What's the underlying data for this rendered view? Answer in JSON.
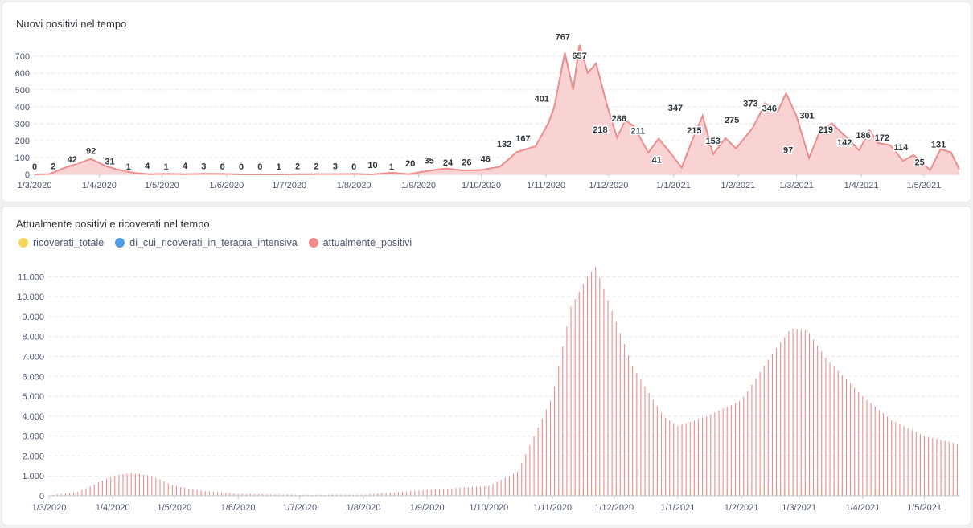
{
  "colors": {
    "red": "#ef8c8c",
    "red_fill": "#f9d3d3",
    "yellow": "#f9d45c",
    "blue": "#509ee3",
    "grid": "#e6e8eb",
    "axis": "#c4c8ce"
  },
  "chart_data": [
    {
      "type": "area",
      "title": "Nuovi positivi nel tempo",
      "xlabel": "",
      "ylabel": "",
      "x_ticks": [
        "1/3/2020",
        "1/4/2020",
        "1/5/2020",
        "1/6/2020",
        "1/7/2020",
        "1/8/2020",
        "1/9/2020",
        "1/10/2020",
        "1/11/2020",
        "1/12/2020",
        "1/1/2021",
        "1/2/2021",
        "1/3/2021",
        "1/4/2021",
        "1/5/2021"
      ],
      "y_ticks": [
        "0",
        "100",
        "200",
        "300",
        "400",
        "500",
        "600",
        "700"
      ],
      "ylim": [
        0,
        780
      ],
      "grid": true,
      "series": [
        {
          "color": "#ef8c8c"
        }
      ],
      "points": [
        {
          "x": "2020-03-01",
          "y": 0
        },
        {
          "x": "2020-03-08",
          "y": 2
        },
        {
          "x": "2020-03-16",
          "y": 42
        },
        {
          "x": "2020-03-23",
          "y": 70
        },
        {
          "x": "2020-03-28",
          "y": 92
        },
        {
          "x": "2020-04-04",
          "y": 50
        },
        {
          "x": "2020-04-09",
          "y": 31
        },
        {
          "x": "2020-04-18",
          "y": 8
        },
        {
          "x": "2020-04-25",
          "y": 1
        },
        {
          "x": "2020-05-03",
          "y": 4
        },
        {
          "x": "2020-05-12",
          "y": 1
        },
        {
          "x": "2020-05-21",
          "y": 4
        },
        {
          "x": "2020-05-30",
          "y": 3
        },
        {
          "x": "2020-06-09",
          "y": 0
        },
        {
          "x": "2020-06-18",
          "y": 0
        },
        {
          "x": "2020-06-27",
          "y": 0
        },
        {
          "x": "2020-07-06",
          "y": 1
        },
        {
          "x": "2020-07-15",
          "y": 2
        },
        {
          "x": "2020-07-24",
          "y": 2
        },
        {
          "x": "2020-08-01",
          "y": 3
        },
        {
          "x": "2020-08-10",
          "y": 0
        },
        {
          "x": "2020-08-19",
          "y": 10
        },
        {
          "x": "2020-08-27",
          "y": 1
        },
        {
          "x": "2020-09-05",
          "y": 20
        },
        {
          "x": "2020-09-14",
          "y": 35
        },
        {
          "x": "2020-09-22",
          "y": 24
        },
        {
          "x": "2020-10-01",
          "y": 26
        },
        {
          "x": "2020-10-10",
          "y": 46
        },
        {
          "x": "2020-10-18",
          "y": 132
        },
        {
          "x": "2020-10-27",
          "y": 167
        },
        {
          "x": "2020-11-02",
          "y": 300
        },
        {
          "x": "2020-11-05",
          "y": 401
        },
        {
          "x": "2020-11-10",
          "y": 720
        },
        {
          "x": "2020-11-14",
          "y": 500
        },
        {
          "x": "2020-11-17",
          "y": 767
        },
        {
          "x": "2020-11-21",
          "y": 600
        },
        {
          "x": "2020-11-25",
          "y": 657
        },
        {
          "x": "2020-11-30",
          "y": 420
        },
        {
          "x": "2020-12-05",
          "y": 218
        },
        {
          "x": "2020-12-09",
          "y": 320
        },
        {
          "x": "2020-12-13",
          "y": 286
        },
        {
          "x": "2020-12-20",
          "y": 130
        },
        {
          "x": "2020-12-25",
          "y": 211
        },
        {
          "x": "2020-12-31",
          "y": 120
        },
        {
          "x": "2021-01-05",
          "y": 41
        },
        {
          "x": "2021-01-10",
          "y": 200
        },
        {
          "x": "2021-01-15",
          "y": 347
        },
        {
          "x": "2021-01-20",
          "y": 120
        },
        {
          "x": "2021-01-26",
          "y": 215
        },
        {
          "x": "2021-01-31",
          "y": 153
        },
        {
          "x": "2021-02-08",
          "y": 275
        },
        {
          "x": "2021-02-14",
          "y": 420
        },
        {
          "x": "2021-02-20",
          "y": 373
        },
        {
          "x": "2021-02-24",
          "y": 480
        },
        {
          "x": "2021-03-01",
          "y": 346
        },
        {
          "x": "2021-03-07",
          "y": 97
        },
        {
          "x": "2021-03-12",
          "y": 250
        },
        {
          "x": "2021-03-18",
          "y": 301
        },
        {
          "x": "2021-03-25",
          "y": 219
        },
        {
          "x": "2021-03-31",
          "y": 142
        },
        {
          "x": "2021-04-05",
          "y": 260
        },
        {
          "x": "2021-04-09",
          "y": 186
        },
        {
          "x": "2021-04-15",
          "y": 172
        },
        {
          "x": "2021-04-21",
          "y": 80
        },
        {
          "x": "2021-04-26",
          "y": 114
        },
        {
          "x": "2021-05-01",
          "y": 60
        },
        {
          "x": "2021-05-04",
          "y": 25
        },
        {
          "x": "2021-05-09",
          "y": 150
        },
        {
          "x": "2021-05-14",
          "y": 131
        },
        {
          "x": "2021-05-18",
          "y": 30
        }
      ],
      "labels": [
        {
          "x": "2020-03-01",
          "text": "0"
        },
        {
          "x": "2020-03-10",
          "text": "2"
        },
        {
          "x": "2020-03-19",
          "text": "42"
        },
        {
          "x": "2020-03-28",
          "text": "92"
        },
        {
          "x": "2020-04-06",
          "text": "31"
        },
        {
          "x": "2020-04-15",
          "text": "1"
        },
        {
          "x": "2020-04-24",
          "text": "4"
        },
        {
          "x": "2020-05-03",
          "text": "1"
        },
        {
          "x": "2020-05-12",
          "text": "4"
        },
        {
          "x": "2020-05-21",
          "text": "3"
        },
        {
          "x": "2020-05-30",
          "text": "0"
        },
        {
          "x": "2020-06-08",
          "text": "0"
        },
        {
          "x": "2020-06-17",
          "text": "0"
        },
        {
          "x": "2020-06-26",
          "text": "1"
        },
        {
          "x": "2020-07-05",
          "text": "2"
        },
        {
          "x": "2020-07-14",
          "text": "2"
        },
        {
          "x": "2020-07-23",
          "text": "3"
        },
        {
          "x": "2020-08-01",
          "text": "0"
        },
        {
          "x": "2020-08-10",
          "text": "10"
        },
        {
          "x": "2020-08-19",
          "text": "1"
        },
        {
          "x": "2020-08-28",
          "text": "20"
        },
        {
          "x": "2020-09-06",
          "text": "35"
        },
        {
          "x": "2020-09-15",
          "text": "24"
        },
        {
          "x": "2020-09-24",
          "text": "26"
        },
        {
          "x": "2020-10-03",
          "text": "46"
        },
        {
          "x": "2020-10-12",
          "text": "132"
        },
        {
          "x": "2020-10-21",
          "text": "167"
        },
        {
          "x": "2020-10-30",
          "text": "401"
        },
        {
          "x": "2020-11-09",
          "text": "767"
        },
        {
          "x": "2020-11-17",
          "text": "657"
        },
        {
          "x": "2020-11-27",
          "text": "218"
        },
        {
          "x": "2020-12-06",
          "text": "286"
        },
        {
          "x": "2020-12-15",
          "text": "211"
        },
        {
          "x": "2020-12-24",
          "text": "41"
        },
        {
          "x": "2021-01-02",
          "text": "347"
        },
        {
          "x": "2021-01-11",
          "text": "215"
        },
        {
          "x": "2021-01-20",
          "text": "153"
        },
        {
          "x": "2021-01-29",
          "text": "275"
        },
        {
          "x": "2021-02-07",
          "text": "373"
        },
        {
          "x": "2021-02-16",
          "text": "346"
        },
        {
          "x": "2021-02-25",
          "text": "97"
        },
        {
          "x": "2021-03-06",
          "text": "301"
        },
        {
          "x": "2021-03-15",
          "text": "219"
        },
        {
          "x": "2021-03-24",
          "text": "142"
        },
        {
          "x": "2021-04-02",
          "text": "186"
        },
        {
          "x": "2021-04-11",
          "text": "172"
        },
        {
          "x": "2021-04-20",
          "text": "114"
        },
        {
          "x": "2021-04-29",
          "text": "25"
        },
        {
          "x": "2021-05-08",
          "text": "131"
        }
      ]
    },
    {
      "type": "bar",
      "title": "Attualmente positivi e ricoverati nel tempo",
      "xlabel": "",
      "ylabel": "",
      "legend_position": "top-left",
      "x_ticks": [
        "1/3/2020",
        "1/4/2020",
        "1/5/2020",
        "1/6/2020",
        "1/7/2020",
        "1/8/2020",
        "1/9/2020",
        "1/10/2020",
        "1/11/2020",
        "1/12/2020",
        "1/1/2021",
        "1/2/2021",
        "1/3/2021",
        "1/4/2021",
        "1/5/2021"
      ],
      "y_ticks": [
        "0",
        "1.000",
        "2.000",
        "3.000",
        "4.000",
        "5.000",
        "6.000",
        "7.000",
        "8.000",
        "9.000",
        "10.000",
        "11.000"
      ],
      "ylim": [
        0,
        11500
      ],
      "grid": true,
      "series": [
        {
          "name": "ricoverati_totale",
          "color": "#f9d45c",
          "points": [
            {
              "x": "2020-03-01",
              "y": 0
            },
            {
              "x": "2020-04-01",
              "y": 120
            },
            {
              "x": "2020-05-01",
              "y": 40
            },
            {
              "x": "2020-06-01",
              "y": 5
            },
            {
              "x": "2020-08-01",
              "y": 5
            },
            {
              "x": "2020-10-01",
              "y": 40
            },
            {
              "x": "2020-11-01",
              "y": 300
            },
            {
              "x": "2020-11-25",
              "y": 500
            },
            {
              "x": "2021-01-01",
              "y": 300
            },
            {
              "x": "2021-02-20",
              "y": 550
            },
            {
              "x": "2021-03-20",
              "y": 500
            },
            {
              "x": "2021-05-18",
              "y": 200
            }
          ]
        },
        {
          "name": "di_cui_ricoverati_in_terapia_intensiva",
          "color": "#509ee3",
          "points": [
            {
              "x": "2020-03-01",
              "y": 0
            },
            {
              "x": "2020-04-01",
              "y": 20
            },
            {
              "x": "2020-06-01",
              "y": 0
            },
            {
              "x": "2020-10-01",
              "y": 5
            },
            {
              "x": "2020-11-25",
              "y": 60
            },
            {
              "x": "2021-01-01",
              "y": 40
            },
            {
              "x": "2021-03-15",
              "y": 70
            },
            {
              "x": "2021-05-18",
              "y": 30
            }
          ]
        },
        {
          "name": "attualmente_positivi",
          "color": "#ef8c8c",
          "points": [
            {
              "x": "2020-03-01",
              "y": 20
            },
            {
              "x": "2020-03-15",
              "y": 200
            },
            {
              "x": "2020-04-01",
              "y": 1000
            },
            {
              "x": "2020-04-10",
              "y": 1150
            },
            {
              "x": "2020-04-20",
              "y": 1000
            },
            {
              "x": "2020-05-01",
              "y": 500
            },
            {
              "x": "2020-05-15",
              "y": 250
            },
            {
              "x": "2020-06-01",
              "y": 100
            },
            {
              "x": "2020-07-01",
              "y": 50
            },
            {
              "x": "2020-08-01",
              "y": 60
            },
            {
              "x": "2020-09-01",
              "y": 300
            },
            {
              "x": "2020-10-01",
              "y": 500
            },
            {
              "x": "2020-10-15",
              "y": 1200
            },
            {
              "x": "2020-11-01",
              "y": 5000
            },
            {
              "x": "2020-11-10",
              "y": 9500
            },
            {
              "x": "2020-11-18",
              "y": 11000
            },
            {
              "x": "2020-11-22",
              "y": 11500
            },
            {
              "x": "2020-12-01",
              "y": 9000
            },
            {
              "x": "2020-12-10",
              "y": 6500
            },
            {
              "x": "2020-12-25",
              "y": 4000
            },
            {
              "x": "2021-01-01",
              "y": 3500
            },
            {
              "x": "2021-01-15",
              "y": 4000
            },
            {
              "x": "2021-02-01",
              "y": 4800
            },
            {
              "x": "2021-02-15",
              "y": 7000
            },
            {
              "x": "2021-02-25",
              "y": 8400
            },
            {
              "x": "2021-03-05",
              "y": 8300
            },
            {
              "x": "2021-03-15",
              "y": 6800
            },
            {
              "x": "2021-04-01",
              "y": 5000
            },
            {
              "x": "2021-04-15",
              "y": 3800
            },
            {
              "x": "2021-05-01",
              "y": 3000
            },
            {
              "x": "2021-05-18",
              "y": 2600
            }
          ]
        }
      ]
    }
  ]
}
